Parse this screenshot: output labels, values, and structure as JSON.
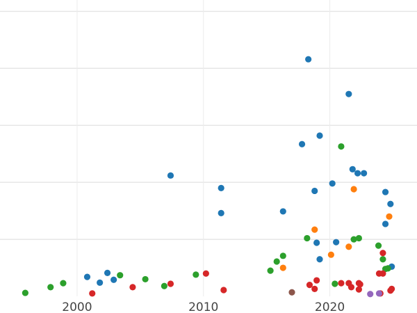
{
  "chart_data": {
    "type": "scatter",
    "title": "",
    "xlabel": "",
    "ylabel": "",
    "xlim": [
      1993.9,
      2026.9
    ],
    "ylim": [
      0,
      5.2
    ],
    "grid": true,
    "x_ticks": [
      2000,
      2010,
      2020
    ],
    "x_tick_labels": [
      "2000",
      "2010",
      "2020"
    ],
    "y_gridlines": [
      1,
      2,
      3,
      4,
      5
    ],
    "series": [
      {
        "color": "#1f77b4",
        "points": [
          [
            2018.3,
            4.16
          ],
          [
            2021.5,
            3.55
          ],
          [
            2019.2,
            2.82
          ],
          [
            2017.8,
            2.67
          ],
          [
            2007.4,
            2.12
          ],
          [
            2021.8,
            2.23
          ],
          [
            2022.2,
            2.16
          ],
          [
            2022.7,
            2.16
          ],
          [
            2020.2,
            1.98
          ],
          [
            2011.4,
            1.9
          ],
          [
            2018.8,
            1.85
          ],
          [
            2024.4,
            1.83
          ],
          [
            2024.8,
            1.62
          ],
          [
            2011.4,
            1.46
          ],
          [
            2016.3,
            1.49
          ],
          [
            2024.4,
            1.27
          ],
          [
            2018.96,
            0.94
          ],
          [
            2020.5,
            0.95
          ],
          [
            2019.2,
            0.65
          ],
          [
            2024.9,
            0.52
          ],
          [
            2000.8,
            0.34
          ],
          [
            2002.4,
            0.41
          ],
          [
            2001.8,
            0.24
          ],
          [
            2002.9,
            0.29
          ]
        ]
      },
      {
        "color": "#2ca02c",
        "points": [
          [
            2020.9,
            2.63
          ],
          [
            2018.2,
            1.02
          ],
          [
            2021.9,
            1.0
          ],
          [
            2022.3,
            1.02
          ],
          [
            2023.85,
            0.89
          ],
          [
            2024.2,
            0.65
          ],
          [
            2024.4,
            0.48
          ],
          [
            2024.6,
            0.49
          ],
          [
            2016.3,
            0.71
          ],
          [
            2015.8,
            0.61
          ],
          [
            2015.3,
            0.45
          ],
          [
            2020.4,
            0.22
          ],
          [
            1995.9,
            0.06
          ],
          [
            1997.9,
            0.16
          ],
          [
            1998.9,
            0.23
          ],
          [
            2003.4,
            0.37
          ],
          [
            2005.4,
            0.3
          ],
          [
            2006.9,
            0.18
          ],
          [
            2009.4,
            0.38
          ]
        ]
      },
      {
        "color": "#ff7f0e",
        "points": [
          [
            2021.9,
            1.88
          ],
          [
            2018.8,
            1.17
          ],
          [
            2024.7,
            1.4
          ],
          [
            2021.5,
            0.87
          ],
          [
            2020.1,
            0.73
          ],
          [
            2016.3,
            0.5
          ]
        ]
      },
      {
        "color": "#d62728",
        "points": [
          [
            2024.2,
            0.76
          ],
          [
            2023.9,
            0.4
          ],
          [
            2024.2,
            0.4
          ],
          [
            2018.96,
            0.28
          ],
          [
            2018.4,
            0.2
          ],
          [
            2018.8,
            0.13
          ],
          [
            2020.9,
            0.23
          ],
          [
            2021.5,
            0.23
          ],
          [
            2021.7,
            0.16
          ],
          [
            2022.3,
            0.23
          ],
          [
            2022.4,
            0.21
          ],
          [
            2022.3,
            0.12
          ],
          [
            2024.0,
            0.05
          ],
          [
            2024.8,
            0.1
          ],
          [
            2024.9,
            0.13
          ],
          [
            2001.2,
            0.05
          ],
          [
            2004.4,
            0.16
          ],
          [
            2007.4,
            0.22
          ],
          [
            2010.2,
            0.4
          ],
          [
            2011.6,
            0.11
          ]
        ]
      },
      {
        "color": "#8c564b",
        "points": [
          [
            2017.0,
            0.07
          ]
        ]
      },
      {
        "color": "#9467bd",
        "points": [
          [
            2023.2,
            0.04
          ],
          [
            2023.9,
            0.05
          ]
        ]
      }
    ]
  }
}
